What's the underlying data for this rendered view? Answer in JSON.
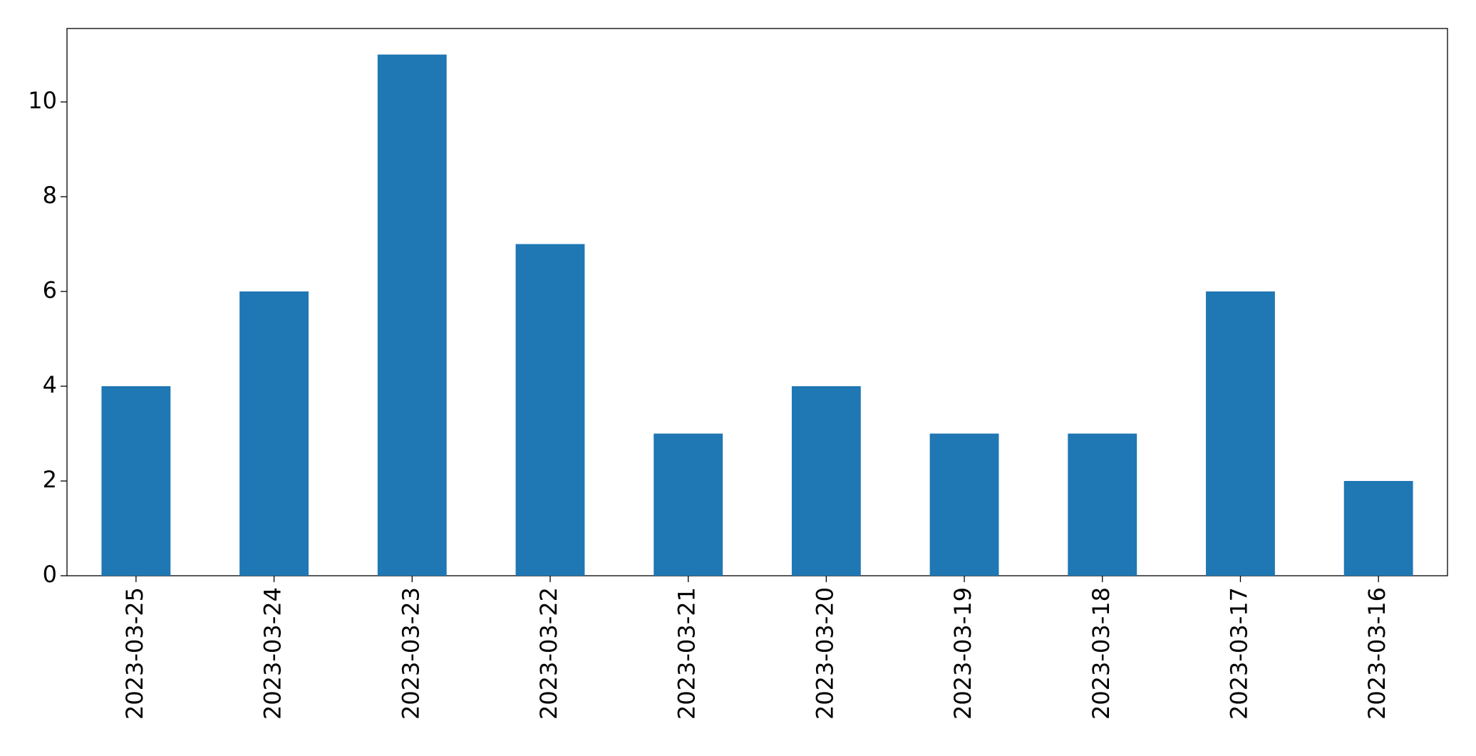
{
  "chart_data": {
    "type": "bar",
    "categories": [
      "2023-03-25",
      "2023-03-24",
      "2023-03-23",
      "2023-03-22",
      "2023-03-21",
      "2023-03-20",
      "2023-03-19",
      "2023-03-18",
      "2023-03-17",
      "2023-03-16"
    ],
    "values": [
      4,
      6,
      11,
      7,
      3,
      4,
      3,
      3,
      6,
      2
    ],
    "color": "#1f77b4",
    "ylim": [
      0,
      11.55
    ],
    "yticks": [
      0,
      2,
      4,
      6,
      8,
      10
    ],
    "grid": false
  }
}
